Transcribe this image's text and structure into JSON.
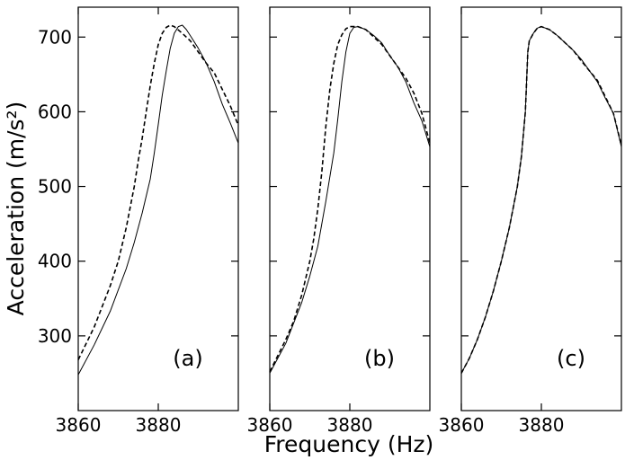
{
  "chart_data": {
    "type": "line",
    "xlabel": "Frequency (Hz)",
    "ylabel": "Acceleration (m/s²)",
    "xlim": [
      3860,
      3900
    ],
    "ylim": [
      200,
      740
    ],
    "x_ticks": [
      3860,
      3880
    ],
    "y_ticks": [
      300,
      400,
      500,
      600,
      700
    ],
    "grid": false,
    "line_color": "#000000",
    "panels": [
      {
        "tag": "(a)",
        "series": [
          {
            "style": "solid",
            "points": [
              [
                3860,
                248
              ],
              [
                3864,
                288
              ],
              [
                3868,
                333
              ],
              [
                3872,
                390
              ],
              [
                3874,
                425
              ],
              [
                3876,
                465
              ],
              [
                3878,
                510
              ],
              [
                3879,
                545
              ],
              [
                3880,
                583
              ],
              [
                3881,
                622
              ],
              [
                3882,
                655
              ],
              [
                3883,
                685
              ],
              [
                3884,
                705
              ],
              [
                3885,
                714
              ],
              [
                3886,
                716
              ],
              [
                3887,
                710
              ],
              [
                3888,
                702
              ],
              [
                3890,
                685
              ],
              [
                3892,
                665
              ],
              [
                3894,
                640
              ],
              [
                3896,
                610
              ],
              [
                3898,
                585
              ],
              [
                3900,
                558
              ]
            ]
          },
          {
            "style": "dashed",
            "points": [
              [
                3860,
                268
              ],
              [
                3864,
                312
              ],
              [
                3868,
                367
              ],
              [
                3870,
                400
              ],
              [
                3872,
                445
              ],
              [
                3874,
                500
              ],
              [
                3875,
                535
              ],
              [
                3876,
                565
              ],
              [
                3877,
                600
              ],
              [
                3878,
                635
              ],
              [
                3879,
                665
              ],
              [
                3880,
                690
              ],
              [
                3881,
                705
              ],
              [
                3882,
                713
              ],
              [
                3883,
                716
              ],
              [
                3884,
                714
              ],
              [
                3886,
                705
              ],
              [
                3888,
                695
              ],
              [
                3890,
                680
              ],
              [
                3892,
                665
              ],
              [
                3894,
                652
              ],
              [
                3896,
                630
              ],
              [
                3898,
                608
              ],
              [
                3900,
                582
              ]
            ]
          }
        ]
      },
      {
        "tag": "(b)",
        "series": [
          {
            "style": "solid",
            "points": [
              [
                3860,
                250
              ],
              [
                3864,
                290
              ],
              [
                3868,
                345
              ],
              [
                3870,
                380
              ],
              [
                3872,
                420
              ],
              [
                3874,
                480
              ],
              [
                3876,
                545
              ],
              [
                3877,
                590
              ],
              [
                3878,
                640
              ],
              [
                3879,
                680
              ],
              [
                3880,
                705
              ],
              [
                3881,
                713
              ],
              [
                3882,
                714
              ],
              [
                3884,
                710
              ],
              [
                3886,
                702
              ],
              [
                3888,
                692
              ],
              [
                3890,
                675
              ],
              [
                3892,
                660
              ],
              [
                3894,
                640
              ],
              [
                3896,
                612
              ],
              [
                3898,
                588
              ],
              [
                3900,
                553
              ]
            ]
          },
          {
            "style": "dashed",
            "points": [
              [
                3860,
                252
              ],
              [
                3864,
                295
              ],
              [
                3866,
                320
              ],
              [
                3868,
                355
              ],
              [
                3870,
                400
              ],
              [
                3871,
                430
              ],
              [
                3872,
                470
              ],
              [
                3873,
                520
              ],
              [
                3874,
                580
              ],
              [
                3875,
                630
              ],
              [
                3876,
                665
              ],
              [
                3877,
                690
              ],
              [
                3878,
                703
              ],
              [
                3879,
                711
              ],
              [
                3880,
                714
              ],
              [
                3882,
                714
              ],
              [
                3884,
                710
              ],
              [
                3886,
                700
              ],
              [
                3888,
                690
              ],
              [
                3890,
                675
              ],
              [
                3892,
                660
              ],
              [
                3894,
                645
              ],
              [
                3896,
                625
              ],
              [
                3898,
                598
              ],
              [
                3900,
                558
              ]
            ]
          }
        ]
      },
      {
        "tag": "(c)",
        "series": [
          {
            "style": "solid",
            "points": [
              [
                3860,
                250
              ],
              [
                3862,
                270
              ],
              [
                3864,
                295
              ],
              [
                3866,
                325
              ],
              [
                3868,
                360
              ],
              [
                3870,
                400
              ],
              [
                3872,
                445
              ],
              [
                3874,
                500
              ],
              [
                3875,
                540
              ],
              [
                3876,
                600
              ],
              [
                3876.6,
                680
              ],
              [
                3877,
                695
              ],
              [
                3878,
                705
              ],
              [
                3879,
                712
              ],
              [
                3880,
                714
              ],
              [
                3882,
                710
              ],
              [
                3884,
                702
              ],
              [
                3886,
                692
              ],
              [
                3888,
                682
              ],
              [
                3890,
                670
              ],
              [
                3892,
                655
              ],
              [
                3894,
                640
              ],
              [
                3896,
                618
              ],
              [
                3898,
                598
              ],
              [
                3900,
                553
              ]
            ]
          },
          {
            "style": "dashed",
            "points": [
              [
                3860,
                250
              ],
              [
                3862,
                270
              ],
              [
                3864,
                295
              ],
              [
                3866,
                325
              ],
              [
                3868,
                360
              ],
              [
                3870,
                400
              ],
              [
                3872,
                445
              ],
              [
                3874,
                500
              ],
              [
                3875,
                540
              ],
              [
                3876,
                600
              ],
              [
                3876.6,
                680
              ],
              [
                3877,
                695
              ],
              [
                3878,
                705
              ],
              [
                3879,
                712
              ],
              [
                3880,
                714
              ],
              [
                3882,
                710
              ],
              [
                3884,
                702
              ],
              [
                3886,
                692
              ],
              [
                3888,
                682
              ],
              [
                3890,
                668
              ],
              [
                3892,
                655
              ],
              [
                3894,
                642
              ],
              [
                3896,
                620
              ],
              [
                3898,
                598
              ],
              [
                3900,
                555
              ]
            ]
          }
        ]
      }
    ]
  }
}
